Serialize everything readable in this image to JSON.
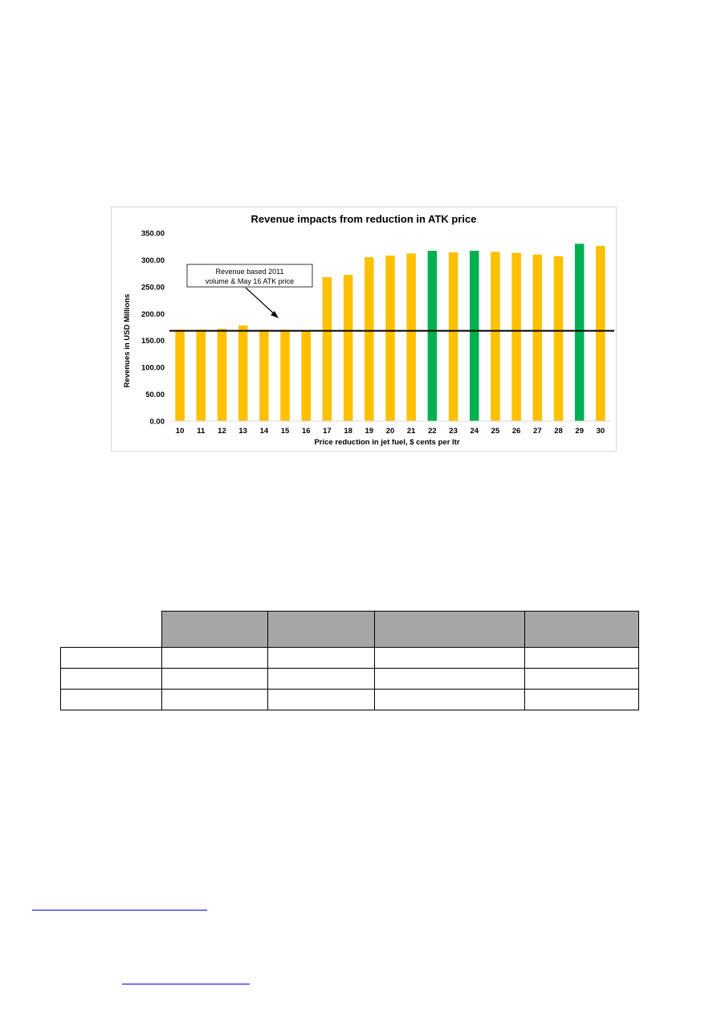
{
  "chart_data": {
    "type": "bar",
    "title": "Revenue impacts from reduction in ATK price",
    "xlabel": "Price reduction in jet fuel, $ cents per ltr",
    "ylabel": "Revenues in USD Millions",
    "ylim": [
      0,
      350
    ],
    "yticks": [
      "0.00",
      "50.00",
      "100.00",
      "150.00",
      "200.00",
      "250.00",
      "300.00",
      "350.00"
    ],
    "categories": [
      "10",
      "11",
      "12",
      "13",
      "14",
      "15",
      "16",
      "17",
      "18",
      "19",
      "20",
      "21",
      "22",
      "23",
      "24",
      "25",
      "26",
      "27",
      "28",
      "29",
      "30"
    ],
    "values": [
      170,
      170,
      172,
      178,
      170,
      170,
      167,
      268,
      272,
      305,
      308,
      312,
      317,
      314,
      317,
      315,
      313,
      310,
      307,
      330,
      326
    ],
    "bar_colors": [
      "#ffc000",
      "#ffc000",
      "#ffc000",
      "#ffc000",
      "#ffc000",
      "#ffc000",
      "#ffc000",
      "#ffc000",
      "#ffc000",
      "#ffc000",
      "#ffc000",
      "#ffc000",
      "#00b050",
      "#ffc000",
      "#00b050",
      "#ffc000",
      "#ffc000",
      "#ffc000",
      "#ffc000",
      "#00b050",
      "#ffc000"
    ],
    "reference_line": 168,
    "annotation": {
      "lines": [
        "Revenue based 2011",
        "volume & May 16 ATK price"
      ]
    },
    "grid": false
  },
  "colors": {
    "highlight": "#00b050",
    "default": "#ffc000",
    "table_header": "#a6a6a6",
    "link": "#0000ee"
  }
}
